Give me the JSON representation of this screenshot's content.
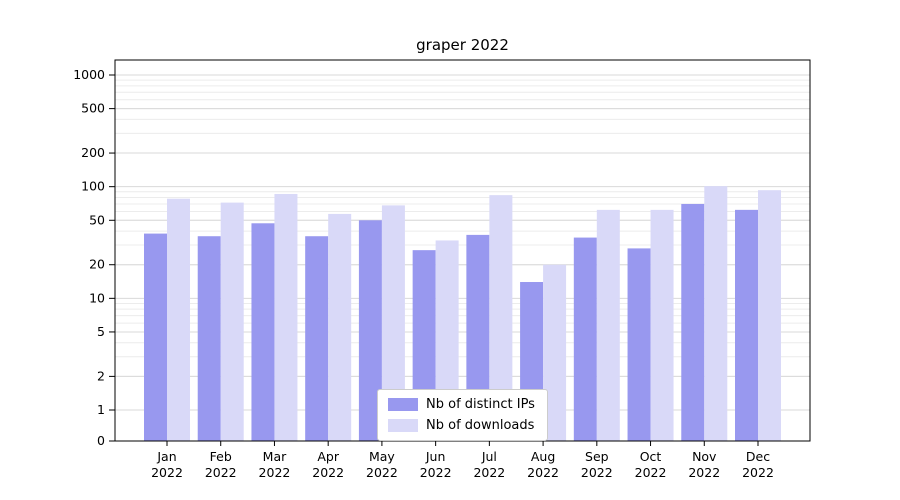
{
  "chart_data": {
    "type": "bar",
    "title": "graper 2022",
    "categories": [
      "Jan",
      "Feb",
      "Mar",
      "Apr",
      "May",
      "Jun",
      "Jul",
      "Aug",
      "Sep",
      "Oct",
      "Nov",
      "Dec"
    ],
    "x_sublabel": "2022",
    "series": [
      {
        "name": "Nb of distinct IPs",
        "color": "#9898ef",
        "values": [
          38,
          36,
          47,
          36,
          50,
          27,
          37,
          14,
          35,
          28,
          70,
          62
        ]
      },
      {
        "name": "Nb of downloads",
        "color": "#d9d9f8",
        "values": [
          78,
          72,
          86,
          57,
          68,
          33,
          84,
          20,
          62,
          62,
          101,
          93
        ]
      }
    ],
    "yscale": "log",
    "ylim": [
      0,
      1000
    ],
    "y_ticks": [
      0,
      1,
      2,
      5,
      10,
      20,
      50,
      100,
      200,
      500,
      1000
    ],
    "grid": true,
    "legend_position": "lower center",
    "colors": {
      "axis": "#000000",
      "grid_major": "#d9d9d9",
      "grid_minor": "#ececec",
      "text": "#000000"
    }
  }
}
